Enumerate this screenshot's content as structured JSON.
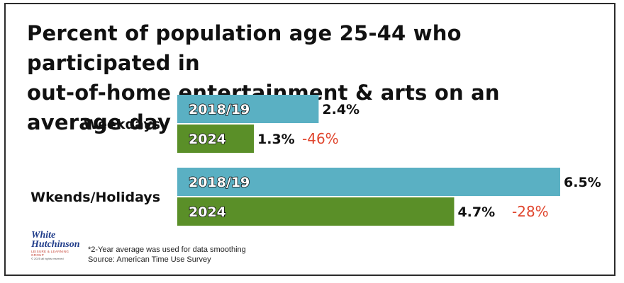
{
  "title_lines": [
    "Percent of population age 25-44 who participated in",
    "out-of-home entertainment & arts on an average day"
  ],
  "footnote": {
    "line1": "*2-Year average was used for data smoothing",
    "line2": "Source: American Time Use Survey"
  },
  "logo": {
    "line1": "White",
    "line2": "Hutchinson",
    "tagline": "LEISURE & LEARNING GROUP",
    "copyright": "© 2025 all rights reserved"
  },
  "colors": {
    "series_2018": "#5ab0c3",
    "series_2024": "#5a8f28",
    "change_text": "#e0452d"
  },
  "chart_data": {
    "type": "bar",
    "orientation": "horizontal",
    "categories": [
      "Weekdays",
      "Wkends/Holidays"
    ],
    "series": [
      {
        "name": "2018/19",
        "values": [
          2.4,
          6.5
        ],
        "labels": [
          "2.4%",
          "6.5%"
        ]
      },
      {
        "name": "2024",
        "values": [
          1.3,
          4.7
        ],
        "labels": [
          "1.3%",
          "4.7%"
        ]
      }
    ],
    "change_labels": [
      "-46%",
      "-28%"
    ],
    "xlim": [
      0,
      6.5
    ],
    "grid": false
  }
}
